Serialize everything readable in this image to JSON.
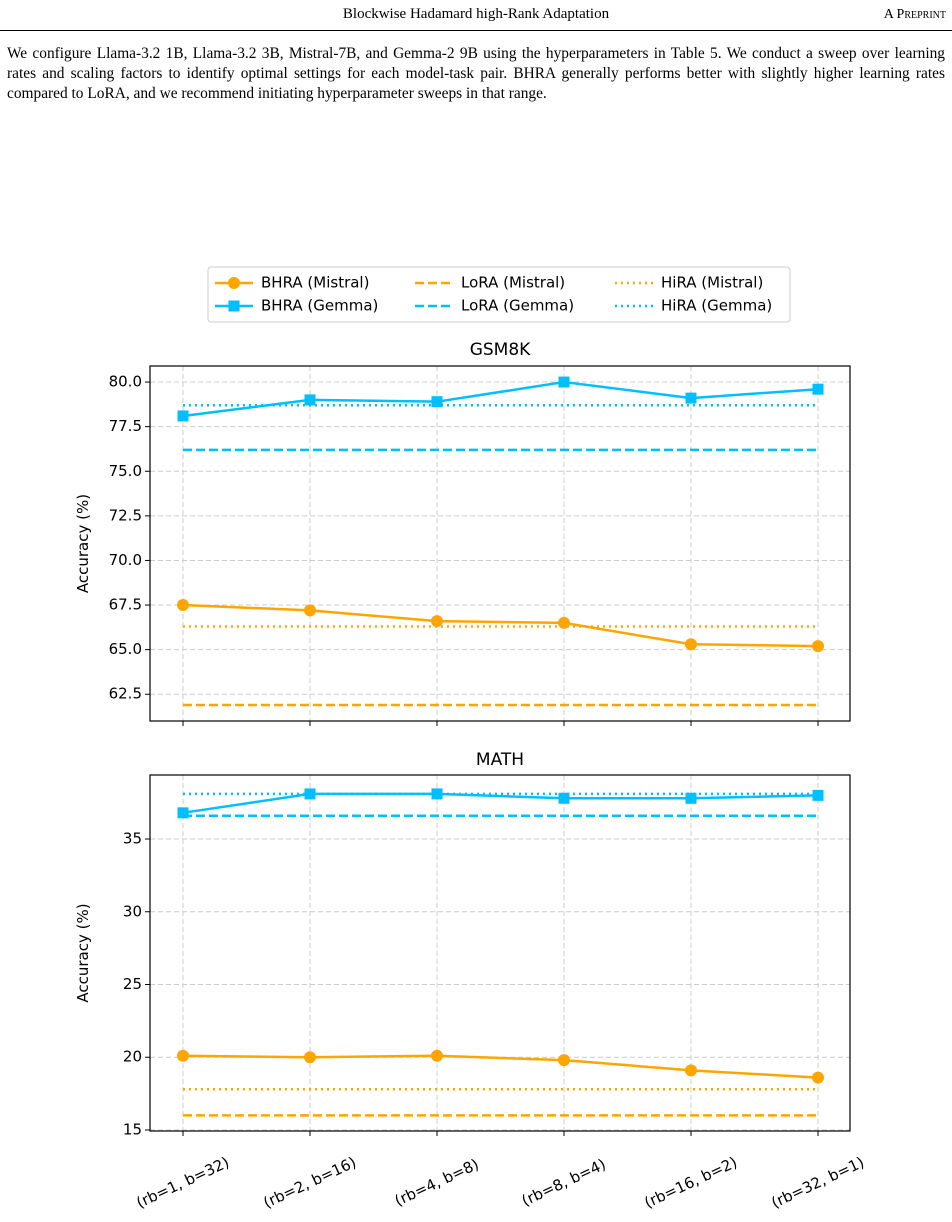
{
  "header": {
    "title": "Blockwise Hadamard high-Rank Adaptation",
    "label": "A Preprint"
  },
  "paragraph": "We configure Llama-3.2 1B, Llama-3.2 3B, Mistral-7B, and Gemma-2 9B using the hyperparameters in Table 5. We conduct a sweep over learning rates and scaling factors to identify optimal settings for each model-task pair. BHRA generally performs better with slightly higher learning rates compared to LoRA, and we recommend initiating hyperparameter sweeps in that range.",
  "chart_data": [
    {
      "type": "line",
      "title": "GSM8K",
      "y_label": "Accuracy (%)",
      "legend": "upper center",
      "grid": true,
      "categories": [
        null,
        null,
        null,
        null,
        null,
        null
      ],
      "ylim": [
        61.0,
        80.9
      ],
      "yticks": [
        62.5,
        {
          "value": 65,
          "label": "65.0"
        },
        67.5,
        {
          "value": 70,
          "label": "70.0"
        },
        72.5,
        {
          "value": 75,
          "label": "75.0"
        },
        77.5,
        {
          "value": 80,
          "label": "80.0"
        }
      ],
      "series": [
        {
          "name": "BHRA (Mistral)",
          "color": "#ffa500",
          "style": "solid",
          "marker": "circle",
          "values": [
            67.5,
            67.2,
            66.6,
            66.5,
            65.3,
            65.2
          ]
        },
        {
          "name": "BHRA (Gemma)",
          "color": "#00bfff",
          "style": "solid",
          "marker": "square",
          "values": [
            78.1,
            79.0,
            78.9,
            80.0,
            79.1,
            79.6
          ]
        },
        {
          "name": "LoRA (Mistral)",
          "color": "#ffa500",
          "style": "dashed",
          "marker": null,
          "values": [
            61.9,
            61.9,
            61.9,
            61.9,
            61.9,
            61.9
          ]
        },
        {
          "name": "LoRA (Gemma)",
          "color": "#00bfff",
          "style": "dashed",
          "marker": null,
          "values": [
            76.2,
            76.2,
            76.2,
            76.2,
            76.2,
            76.2
          ]
        },
        {
          "name": "HiRA (Mistral)",
          "color": "#ffa500",
          "style": "dotted",
          "marker": null,
          "values": [
            66.3,
            66.3,
            66.3,
            66.3,
            66.3,
            66.3
          ]
        },
        {
          "name": "HiRA (Gemma)",
          "color": "#00bfff",
          "style": "dotted",
          "marker": null,
          "values": [
            78.7,
            78.7,
            78.7,
            78.7,
            78.7,
            78.7
          ]
        }
      ]
    },
    {
      "type": "line",
      "title": "MATH",
      "y_label": "Accuracy (%)",
      "grid": true,
      "categories": [
        "(rb=1, b=32)",
        "(rb=2, b=16)",
        "(rb=4, b=8)",
        "(rb=8, b=4)",
        "(rb=16, b=2)",
        "(rb=32, b=1)"
      ],
      "ylim": [
        14.93,
        39.4
      ],
      "yticks": [
        15,
        20,
        25,
        30,
        35
      ],
      "series": [
        {
          "color": "#ffa500",
          "style": "solid",
          "marker": "circle",
          "values": [
            20.1,
            20.0,
            20.1,
            19.8,
            19.1,
            18.6
          ]
        },
        {
          "color": "#00bfff",
          "style": "solid",
          "marker": "square",
          "values": [
            36.8,
            38.1,
            38.1,
            37.8,
            37.8,
            38.0
          ]
        },
        {
          "color": "#ffa500",
          "style": "dashed",
          "marker": null,
          "values": [
            16.0,
            16.0,
            16.0,
            16.0,
            16.0,
            16.0
          ]
        },
        {
          "color": "#00bfff",
          "style": "dashed",
          "marker": null,
          "values": [
            36.6,
            36.6,
            36.6,
            36.6,
            36.6,
            36.6
          ]
        },
        {
          "color": "#ffa500",
          "style": "dotted",
          "marker": null,
          "values": [
            17.8,
            17.8,
            17.8,
            17.8,
            17.8,
            17.8
          ]
        },
        {
          "color": "#00bfff",
          "style": "dotted",
          "marker": null,
          "values": [
            38.1,
            38.1,
            38.1,
            38.1,
            38.1,
            38.1
          ]
        }
      ]
    }
  ]
}
